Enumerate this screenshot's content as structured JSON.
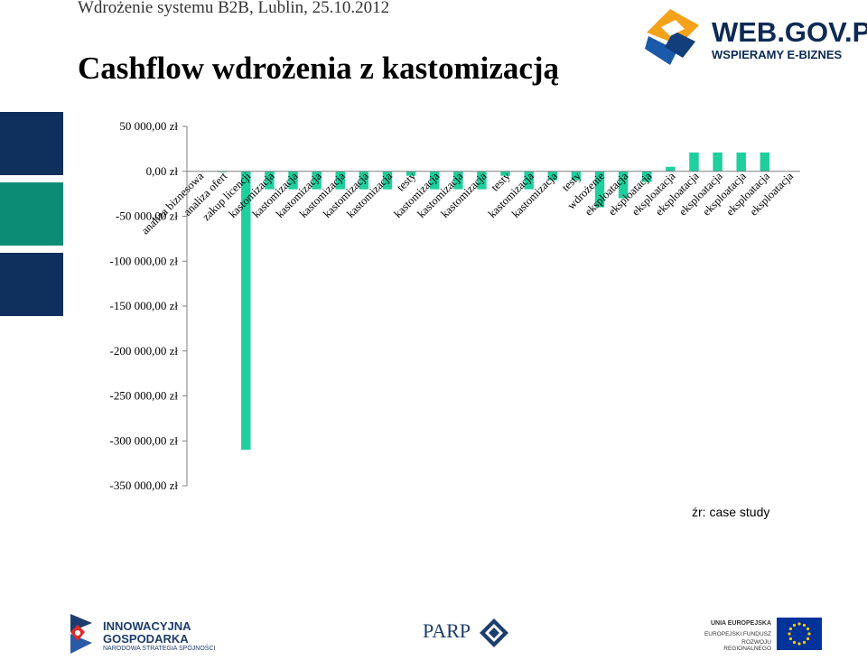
{
  "header": {
    "subtitle": "Wdrożenie systemu B2B, Lublin, 25.10.2012",
    "title": "Cashflow wdrożenia z kastomizacją"
  },
  "logos": {
    "webgov_main": "WEB.GOV.PL",
    "webgov_tag": "WSPIERAMY E-BIZNES",
    "ig_line1": "INNOWACYJNA",
    "ig_line2": "GOSPODARKA",
    "ig_line3": "NARODOWA STRATEGIA SPÓJNOŚCI",
    "parp": "PARP",
    "eu_line1": "UNIA EUROPEJSKA",
    "eu_line2": "EUROPEJSKI FUNDUSZ",
    "eu_line3": "ROZWOJU REGIONALNEGO"
  },
  "source_note": "źr: case study",
  "colors": {
    "bar": "#1fcf9d",
    "deco_navy": "#0f2f5c",
    "deco_teal": "#0d8c75",
    "logo_blue": "#1a5aa8",
    "logo_orange": "#f5a21b"
  },
  "chart_data": {
    "type": "bar",
    "categories": [
      "analiza biznesowa",
      "analiza ofert",
      "zakup licencji",
      "kastomizacja",
      "kastomizacja",
      "kastomizacja",
      "kastomizacja",
      "kastomizacja",
      "kastomizacja",
      "testy",
      "kastomizacja",
      "kastomizacja",
      "kastomizacja",
      "testy",
      "kastomizacja",
      "kastomizacja",
      "testy",
      "wdrożenie",
      "eksploatacja",
      "eksploatacja",
      "eksploatacja",
      "eksploatacja",
      "eksploatacja",
      "eksploatacja",
      "eksploatacja",
      "eksploatacja"
    ],
    "values": [
      0,
      -1000,
      -310000,
      -20000,
      -20000,
      -20000,
      -20000,
      -20000,
      -20000,
      -5000,
      -20000,
      -20000,
      -20000,
      -5000,
      -20000,
      -10000,
      -10000,
      -40000,
      -30000,
      -12000,
      5000,
      21000,
      21000,
      21000,
      21000,
      0
    ],
    "y_ticks": [
      "50 000,00 zł",
      "0,00 zł",
      "-50 000,00 zł",
      "-100 000,00 zł",
      "-150 000,00 zł",
      "-200 000,00 zł",
      "-250 000,00 zł",
      "-300 000,00 zł",
      "-350 000,00 zł"
    ],
    "ylim": [
      -350000,
      50000
    ],
    "grid": false,
    "legend": "none"
  }
}
